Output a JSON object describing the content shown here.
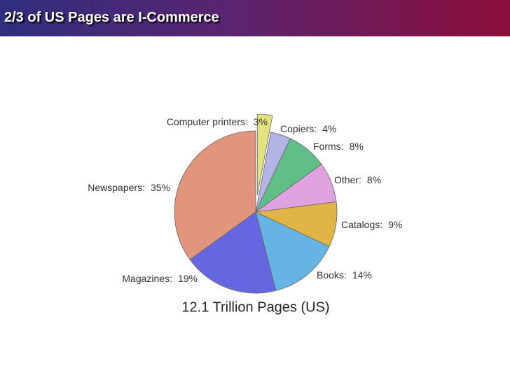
{
  "slide": {
    "title": "2/3 of US Pages are I-Commerce"
  },
  "chart_data": {
    "type": "pie",
    "title": "12.1 Trillion Pages (US)",
    "categories": [
      "Computer printers:",
      "Copiers:",
      "Forms:",
      "Other:",
      "Catalogs:",
      "Books:",
      "Magazines:",
      "Newspapers:"
    ],
    "values": [
      3,
      4,
      8,
      8,
      9,
      14,
      19,
      35
    ],
    "value_labels": [
      "3%",
      "4%",
      "8%",
      "8%",
      "9%",
      "14%",
      "19%",
      "35%"
    ],
    "colors": [
      "#e2e27e",
      "#b3b3e6",
      "#5fbf86",
      "#e0a2e0",
      "#e0b445",
      "#66b4e4",
      "#6666e0",
      "#e0957c"
    ],
    "explode": [
      true,
      false,
      false,
      false,
      false,
      false,
      false,
      false
    ]
  }
}
